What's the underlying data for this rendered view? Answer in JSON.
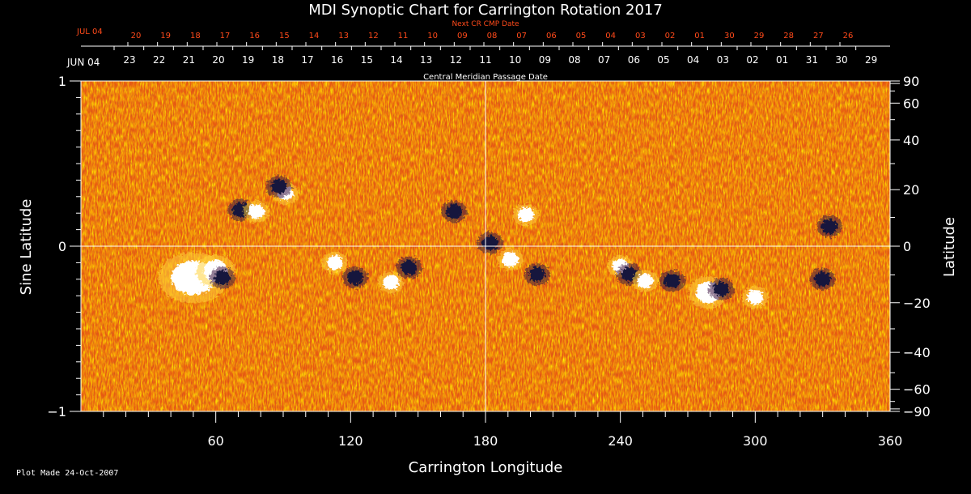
{
  "chart_data": {
    "type": "heatmap",
    "title": "MDI Synoptic Chart for Carrington Rotation 2017",
    "xlabel": "Carrington Longitude",
    "ylabel_left": "Sine Latitude",
    "ylabel_right": "Latitude",
    "top_label_cmp": "Central Meridian Passage Date",
    "top_label_next": "Next CR CMP Date",
    "xlim": [
      0,
      360
    ],
    "ylim": [
      -1,
      1
    ],
    "x_ticks": [
      60,
      120,
      180,
      240,
      300,
      360
    ],
    "y_ticks_left": [
      {
        "value": 1,
        "label": "1"
      },
      {
        "value": 0,
        "label": "0"
      },
      {
        "value": -1,
        "label": "−1"
      }
    ],
    "y_ticks_right": [
      {
        "value": 90,
        "label": "90"
      },
      {
        "value": 60,
        "label": "60"
      },
      {
        "value": 40,
        "label": "40"
      },
      {
        "value": 20,
        "label": "20"
      },
      {
        "value": 0,
        "label": "0"
      },
      {
        "value": -20,
        "label": "−20"
      },
      {
        "value": -40,
        "label": "−40"
      },
      {
        "value": -60,
        "label": "−60"
      },
      {
        "value": -90,
        "label": "−90"
      }
    ],
    "cmp_dates": [
      "JUN 04",
      "23",
      "22",
      "21",
      "20",
      "19",
      "18",
      "17",
      "16",
      "15",
      "14",
      "13",
      "12",
      "11",
      "10",
      "09",
      "08",
      "07",
      "06",
      "05",
      "04",
      "03",
      "02",
      "01",
      "31",
      "30",
      "29"
    ],
    "next_cr_dates": [
      "JUL 04",
      "20",
      "19",
      "18",
      "17",
      "16",
      "15",
      "14",
      "13",
      "12",
      "11",
      "10",
      "09",
      "08",
      "07",
      "06",
      "05",
      "04",
      "03",
      "02",
      "01",
      "30",
      "29",
      "28",
      "27",
      "26"
    ],
    "grid": "crosshair at longitude 180 and latitude 0",
    "colormap": "magnetic field: orange/red background, white = positive polarity, dark blue/black = negative polarity",
    "active_regions": [
      {
        "lon": 50,
        "sinlat": -0.19,
        "polarity": "positive"
      },
      {
        "lon": 60,
        "sinlat": -0.15,
        "polarity": "positive"
      },
      {
        "lon": 63,
        "sinlat": -0.19,
        "polarity": "negative"
      },
      {
        "lon": 71,
        "sinlat": 0.22,
        "polarity": "negative"
      },
      {
        "lon": 78,
        "sinlat": 0.21,
        "polarity": "positive"
      },
      {
        "lon": 91,
        "sinlat": 0.32,
        "polarity": "positive"
      },
      {
        "lon": 88,
        "sinlat": 0.36,
        "polarity": "negative"
      },
      {
        "lon": 113,
        "sinlat": -0.1,
        "polarity": "positive"
      },
      {
        "lon": 122,
        "sinlat": -0.19,
        "polarity": "negative"
      },
      {
        "lon": 138,
        "sinlat": -0.22,
        "polarity": "positive"
      },
      {
        "lon": 146,
        "sinlat": -0.13,
        "polarity": "negative"
      },
      {
        "lon": 166,
        "sinlat": 0.21,
        "polarity": "negative"
      },
      {
        "lon": 182,
        "sinlat": 0.02,
        "polarity": "negative"
      },
      {
        "lon": 191,
        "sinlat": -0.08,
        "polarity": "positive"
      },
      {
        "lon": 198,
        "sinlat": 0.19,
        "polarity": "positive"
      },
      {
        "lon": 203,
        "sinlat": -0.17,
        "polarity": "negative"
      },
      {
        "lon": 240,
        "sinlat": -0.12,
        "polarity": "positive"
      },
      {
        "lon": 244,
        "sinlat": -0.17,
        "polarity": "negative"
      },
      {
        "lon": 251,
        "sinlat": -0.21,
        "polarity": "positive"
      },
      {
        "lon": 263,
        "sinlat": -0.21,
        "polarity": "negative"
      },
      {
        "lon": 279,
        "sinlat": -0.28,
        "polarity": "positive"
      },
      {
        "lon": 285,
        "sinlat": -0.26,
        "polarity": "negative"
      },
      {
        "lon": 300,
        "sinlat": -0.31,
        "polarity": "positive"
      },
      {
        "lon": 330,
        "sinlat": -0.2,
        "polarity": "negative"
      },
      {
        "lon": 333,
        "sinlat": 0.12,
        "polarity": "negative"
      }
    ]
  },
  "footer": {
    "plot_made": "Plot Made 24-Oct-2007"
  },
  "colors": {
    "background": "#000000",
    "field_base": "#e85a12",
    "positive": "#ffffff",
    "negative": "#14143c",
    "next_cr_text": "#ff4a1a",
    "axis": "#ffffff"
  }
}
